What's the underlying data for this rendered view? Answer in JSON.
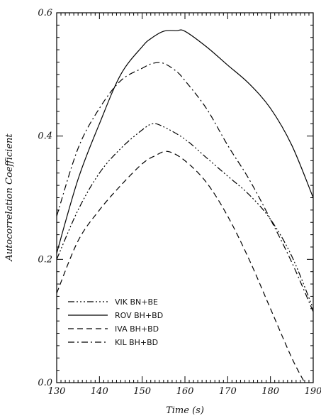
{
  "chart_data": {
    "type": "line",
    "xlabel": "Time (s)",
    "ylabel": "Autocorrelation Coefficient",
    "xlim": [
      130,
      190
    ],
    "ylim": [
      0.0,
      0.6
    ],
    "x_major_ticks": [
      130,
      140,
      150,
      160,
      170,
      180,
      190
    ],
    "x_tick_labels": [
      "130",
      "140",
      "150",
      "160",
      "170",
      "180",
      "190"
    ],
    "y_major_ticks": [
      0.0,
      0.2,
      0.4,
      0.6
    ],
    "y_tick_labels": [
      "0.0",
      "0.2",
      "0.4",
      "0.6"
    ],
    "grid": false,
    "legend_position": "lower-left",
    "series": [
      {
        "name": "VIK BN+BE",
        "style": "dash-dot-dot",
        "color": "#000000",
        "x": [
          130,
          135,
          140,
          145,
          150,
          152.5,
          155,
          160,
          165,
          170,
          175,
          180,
          185,
          190
        ],
        "y": [
          0.2,
          0.28,
          0.34,
          0.38,
          0.41,
          0.42,
          0.415,
          0.395,
          0.365,
          0.335,
          0.305,
          0.265,
          0.205,
          0.12
        ]
      },
      {
        "name": "ROV BH+BD",
        "style": "solid",
        "color": "#000000",
        "x": [
          130,
          135,
          140,
          145,
          150,
          152,
          155,
          158,
          160,
          165,
          170,
          175,
          180,
          185,
          190
        ],
        "y": [
          0.21,
          0.33,
          0.42,
          0.5,
          0.545,
          0.558,
          0.57,
          0.571,
          0.57,
          0.545,
          0.515,
          0.485,
          0.445,
          0.385,
          0.3
        ]
      },
      {
        "name": "IVA BH+BD",
        "style": "dashed",
        "color": "#000000",
        "x": [
          130,
          135,
          140,
          145,
          150,
          153,
          156,
          160,
          165,
          170,
          175,
          180,
          185,
          188
        ],
        "y": [
          0.145,
          0.23,
          0.28,
          0.32,
          0.355,
          0.368,
          0.375,
          0.36,
          0.325,
          0.27,
          0.2,
          0.12,
          0.04,
          0.0
        ]
      },
      {
        "name": "KIL BH+BD",
        "style": "dash-dot",
        "color": "#000000",
        "x": [
          130,
          135,
          140,
          145,
          150,
          152.5,
          155,
          158,
          160,
          165,
          170,
          175,
          180,
          185,
          190
        ],
        "y": [
          0.27,
          0.38,
          0.445,
          0.49,
          0.51,
          0.518,
          0.518,
          0.505,
          0.49,
          0.445,
          0.385,
          0.33,
          0.265,
          0.195,
          0.115
        ]
      }
    ]
  }
}
